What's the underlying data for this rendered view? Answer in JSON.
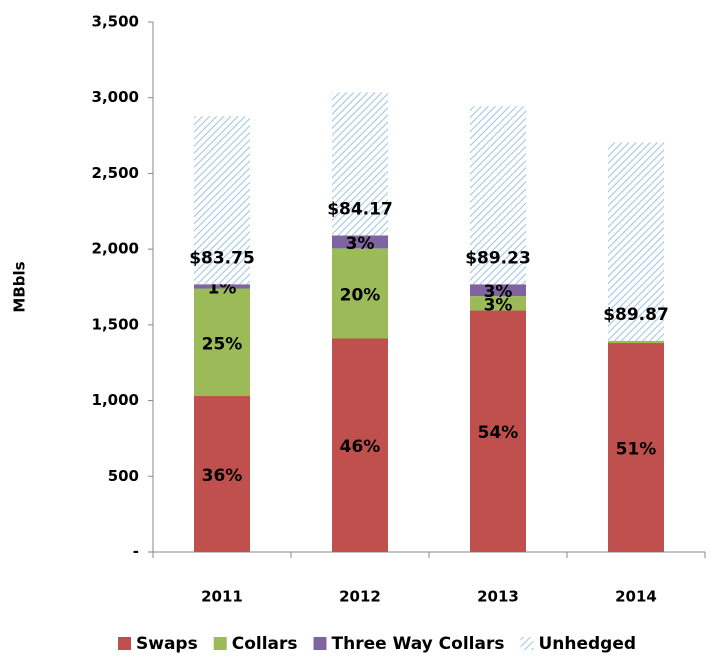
{
  "chart_data": {
    "type": "stacked_bar",
    "y_label": "MBbls",
    "categories": [
      "2011",
      "2012",
      "2013",
      "2014"
    ],
    "series": [
      {
        "name": "Swaps",
        "color": "#c0504d",
        "values": [
          1030,
          1410,
          1595,
          1380
        ],
        "labels": [
          "36%",
          "46%",
          "54%",
          "51%"
        ]
      },
      {
        "name": "Collars",
        "color": "#9bbb59",
        "values": [
          710,
          595,
          95,
          15
        ],
        "labels": [
          "25%",
          "20%",
          "3%",
          null
        ]
      },
      {
        "name": "Three Way Collars",
        "color": "#8064a2",
        "values": [
          28,
          85,
          78,
          0
        ],
        "labels": [
          "1%",
          "3%",
          "3%",
          null
        ]
      },
      {
        "name": "Unhedged",
        "color": "#9dc3e6",
        "pattern": "hatch",
        "values": [
          1110,
          945,
          1175,
          1310
        ],
        "labels": [
          null,
          null,
          null,
          null
        ]
      }
    ],
    "annotations": [
      "$83.75",
      "$84.17",
      "$89.23",
      "$89.87"
    ],
    "ylim": [
      0,
      3500
    ],
    "yticks": [
      {
        "value": 0,
        "label": "-"
      },
      500,
      {
        "value": 1000,
        "label": "1,000"
      },
      {
        "value": 1500,
        "label": "1,500"
      },
      {
        "value": 2000,
        "label": "2,000"
      },
      {
        "value": 2500,
        "label": "2,500"
      },
      {
        "value": 3000,
        "label": "3,000"
      },
      {
        "value": 3500,
        "label": "3,500"
      }
    ],
    "grid": false,
    "legend": "bottom"
  }
}
